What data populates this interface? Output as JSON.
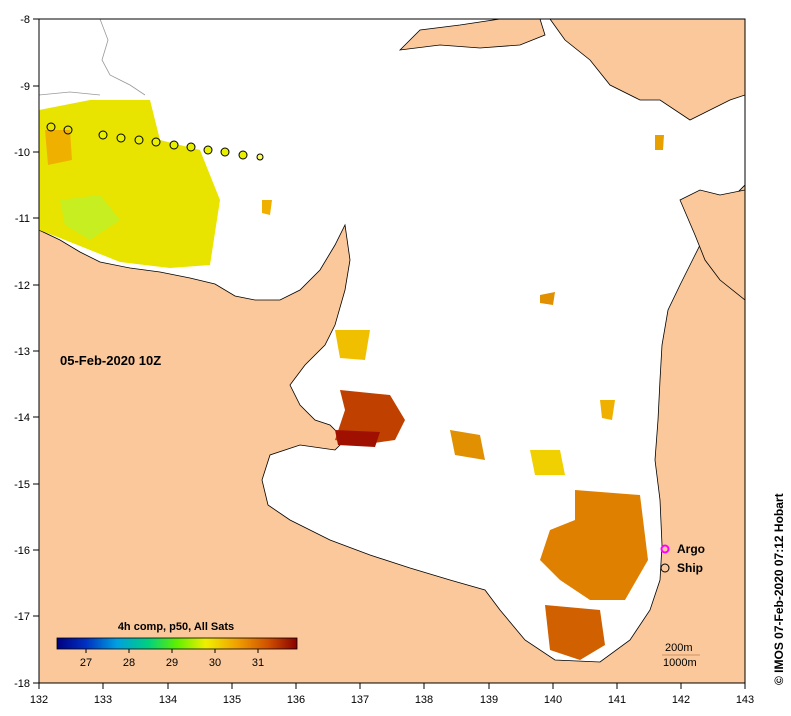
{
  "map": {
    "date_label": "05-Feb-2020 10Z",
    "credit": "© IMOS 07-Feb-2020 07:12 Hobart",
    "lon_ticks": [
      "132",
      "133",
      "134",
      "135",
      "136",
      "137",
      "138",
      "139",
      "140",
      "141",
      "142",
      "143"
    ],
    "lat_ticks": [
      "-8",
      "-9",
      "-10",
      "-11",
      "-12",
      "-13",
      "-14",
      "-15",
      "-16",
      "-17",
      "-18"
    ],
    "colors": {
      "land": "#fac89a",
      "sea": "#ffffff",
      "coast": "#000000",
      "ship_marker": "#e8f000",
      "argo_marker": "#ff00ff"
    },
    "legend": {
      "argo": "Argo",
      "ship": "Ship"
    },
    "colorbar": {
      "title": "4h comp, p50, All Sats",
      "ticks": [
        "27",
        "28",
        "29",
        "30",
        "31"
      ],
      "range": [
        26.3,
        31.9
      ]
    },
    "contour_labels": {
      "shallow": "200m",
      "deep": "1000m"
    }
  }
}
